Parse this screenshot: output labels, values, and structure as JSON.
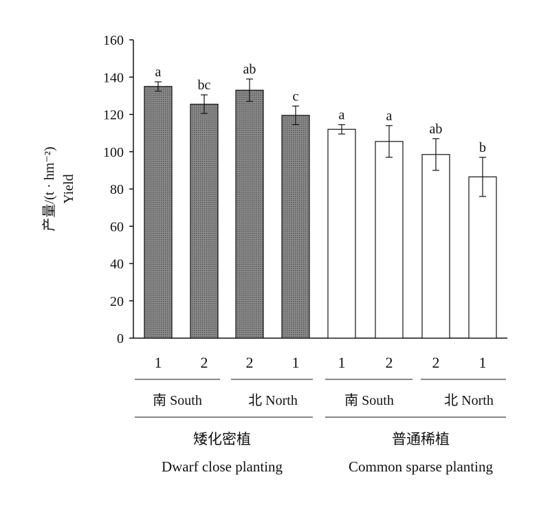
{
  "chart_data": {
    "type": "bar",
    "ylabel_cn": "产量/(t · hm⁻²)",
    "ylabel_en": "Yield",
    "ylim": [
      0,
      160
    ],
    "yticks": [
      "0",
      "20",
      "40",
      "60",
      "80",
      "100",
      "120",
      "140",
      "160"
    ],
    "categories": [
      "1",
      "2",
      "2",
      "1",
      "1",
      "2",
      "2",
      "1"
    ],
    "values": [
      135,
      125.5,
      133,
      119.5,
      112,
      105.5,
      98.5,
      86.5
    ],
    "errors": [
      2.5,
      5,
      6,
      5,
      2.5,
      8.5,
      8.5,
      10.5
    ],
    "letters": [
      "a",
      "bc",
      "ab",
      "c",
      "a",
      "a",
      "ab",
      "b"
    ],
    "bar_fill": [
      "dark",
      "dark",
      "dark",
      "dark",
      "white",
      "white",
      "white",
      "white"
    ],
    "subgroups": [
      "南 South",
      "北 North",
      "南 South",
      "北 North"
    ],
    "groups": [
      {
        "cn": "矮化密植",
        "en": "Dwarf close planting"
      },
      {
        "cn": "普通稀植",
        "en": "Common sparse planting"
      }
    ],
    "colors": {
      "dark_bar": "#777777",
      "white_bar": "#ffffff",
      "axis": "#111111"
    }
  }
}
